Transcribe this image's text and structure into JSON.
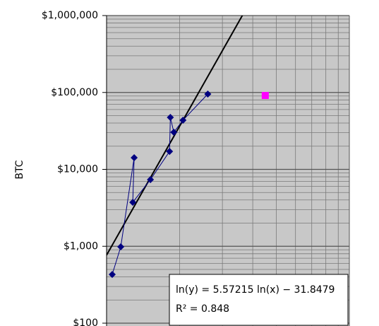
{
  "chart_data": {
    "type": "scatter",
    "y_label": "BTC",
    "xscale": "log",
    "yscale": "log",
    "xlim": [
      1000,
      10000
    ],
    "ylim": [
      100,
      1000000
    ],
    "yticks": [
      {
        "value": 1000000,
        "label": "$1,000,000"
      },
      {
        "value": 100000,
        "label": "$100,000"
      },
      {
        "value": 10000,
        "label": "$10,000"
      },
      {
        "value": 1000,
        "label": "$1,000"
      },
      {
        "value": 100,
        "label": "$100"
      }
    ],
    "grid": true,
    "series": [
      {
        "color": "#000080",
        "marker": "diamond",
        "connected": true,
        "x": [
          1055,
          1144,
          1299,
          1282,
          1516,
          1817,
          1831,
          1892,
          2064,
          2612
        ],
        "values": [
          430,
          985,
          14200,
          3730,
          7360,
          17100,
          47400,
          30400,
          43600,
          95300
        ]
      },
      {
        "color": "#ff00ff",
        "marker": "square",
        "connected": false,
        "x": [
          4504
        ],
        "values": [
          91400
        ]
      }
    ],
    "trendline": {
      "slope": 5.57215,
      "intercept": -31.8479,
      "color": "#000000",
      "equation": "ln(y) = 5.57215 ln(x) − 31.8479",
      "r_squared": "R² = 0.848"
    }
  }
}
